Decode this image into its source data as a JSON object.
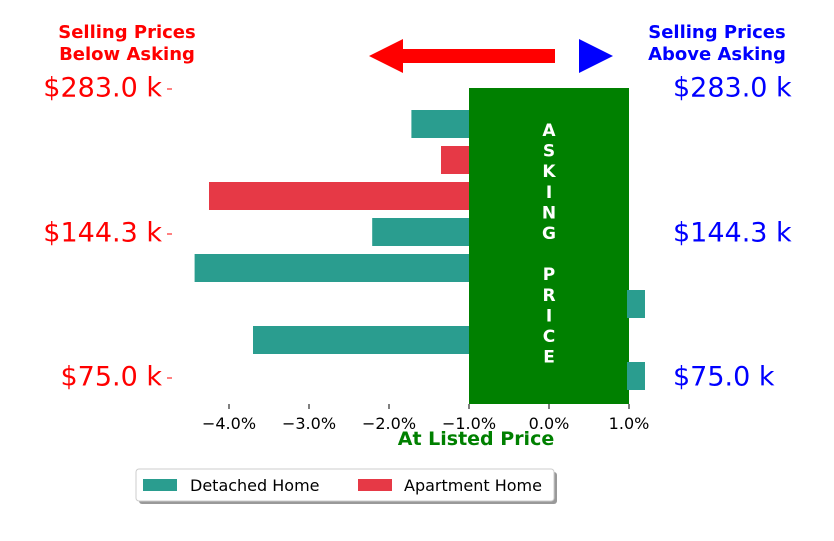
{
  "header": {
    "left_line1": "Selling Prices",
    "left_line2": "Below Asking",
    "right_line1": "Selling Prices",
    "right_line2": "Above Asking",
    "left_color": "#ff0000",
    "right_color": "#0000ff"
  },
  "band": {
    "label_letters": [
      "A",
      "S",
      "K",
      "I",
      "N",
      "G",
      "",
      "P",
      "R",
      "I",
      "C",
      "E"
    ],
    "color": "#008000"
  },
  "chart_data": {
    "type": "bar",
    "orientation": "horizontal",
    "x_axis": {
      "title": "At Listed Price",
      "title_color": "#008000",
      "ticks": [
        -4.0,
        -3.0,
        -2.0,
        -1.0,
        0.0,
        1.0
      ],
      "tick_labels": [
        "−4.0%",
        "−3.0%",
        "−2.0%",
        "−1.0%",
        "0.0%",
        "1.0%"
      ],
      "range": [
        -4.5,
        1.2
      ]
    },
    "left_price_labels": [
      "$283.0 k",
      "$144.3 k",
      "$75.0 k"
    ],
    "right_price_labels": [
      "$283.0 k",
      "$144.3 k",
      "$75.0 k"
    ],
    "bars": [
      {
        "series": "Detached Home",
        "value": -1.72
      },
      {
        "series": "Apartment Home",
        "value": -1.35
      },
      {
        "series": "Apartment Home",
        "value": -4.25
      },
      {
        "series": "Detached Home",
        "value": -2.21
      },
      {
        "series": "Detached Home",
        "value": -4.43
      },
      {
        "series": "Detached Home",
        "value": 1.2
      },
      {
        "series": "Detached Home",
        "value": -3.7
      },
      {
        "series": "Detached Home",
        "value": 1.2
      }
    ],
    "series": [
      {
        "name": "Detached Home",
        "color": "#2a9d8f"
      },
      {
        "name": "Apartment Home",
        "color": "#e63946"
      }
    ],
    "legend_position": "bottom-center"
  }
}
